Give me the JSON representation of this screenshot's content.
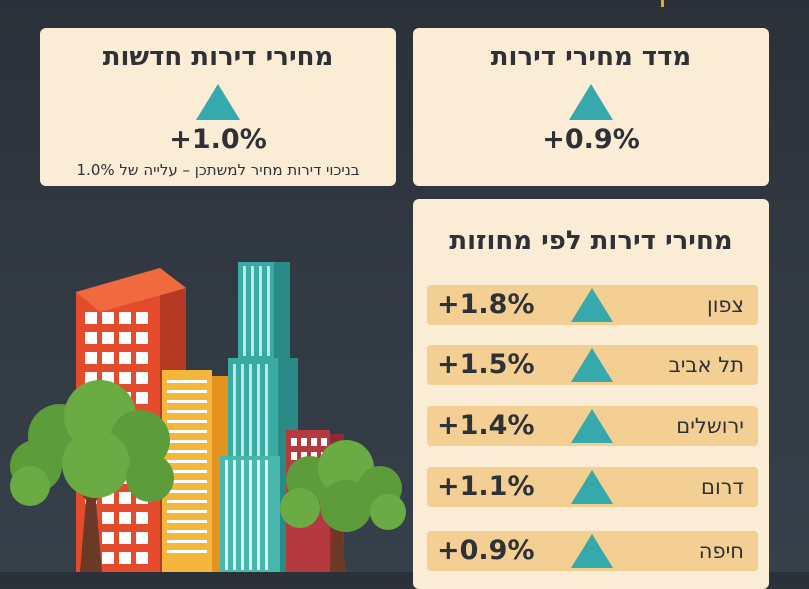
{
  "cards": {
    "new_apartments": {
      "title": "מחירי דירות חדשות",
      "value": "+1.0%",
      "note": "בניכוי דירות מחיר למשתכן – עלייה של 1.0%"
    },
    "price_index": {
      "title": "מדד מחירי דירות",
      "value": "+0.9%"
    },
    "districts": {
      "title": "מחירי דירות לפי מחוזות",
      "rows": [
        {
          "name": "צפון",
          "value": "+1.8%"
        },
        {
          "name": "תל אביב",
          "value": "+1.5%"
        },
        {
          "name": "ירושלים",
          "value": "+1.4%"
        },
        {
          "name": "דרום",
          "value": "+1.1%"
        },
        {
          "name": "חיפה",
          "value": "+0.9%"
        }
      ]
    }
  },
  "colors": {
    "background": "#2f363e",
    "card": "#fbecd6",
    "row": "#f4cf93",
    "up_arrow": "#36a9ac",
    "text": "#2e3136"
  },
  "icons": [
    "up-triangle-icon",
    "city-buildings-illustration",
    "tree-illustration"
  ]
}
